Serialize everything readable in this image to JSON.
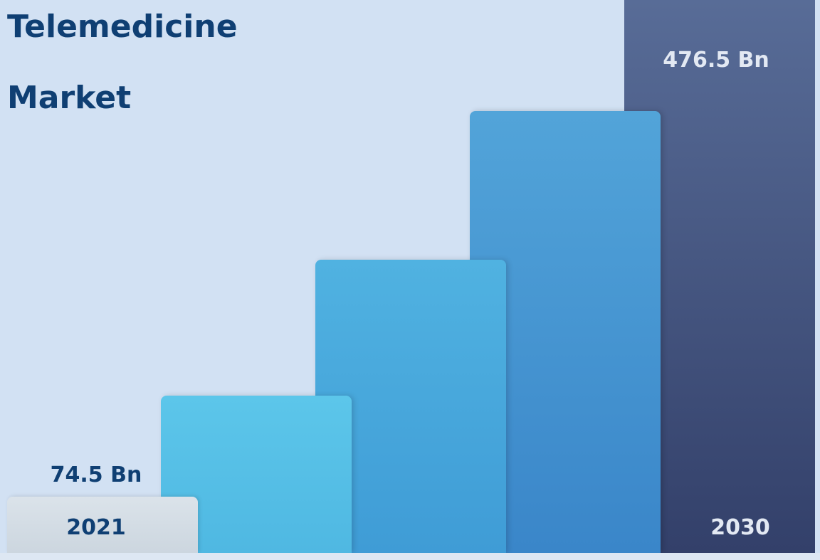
{
  "title_lines": [
    "Telemedicine",
    "Market"
  ],
  "start": {
    "year": "2021",
    "value": "74.5 Bn"
  },
  "end": {
    "year": "2030",
    "value": "476.5 Bn"
  }
}
